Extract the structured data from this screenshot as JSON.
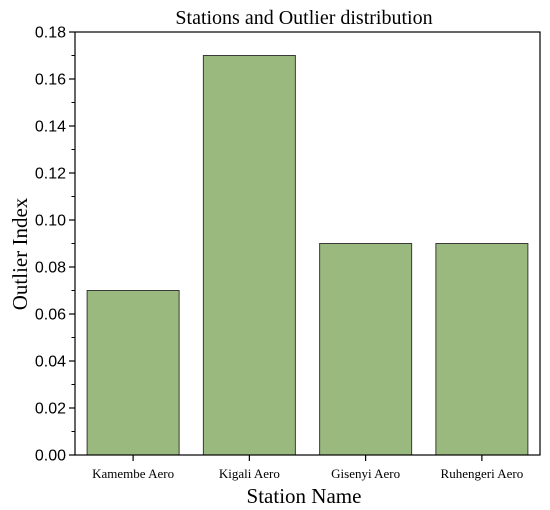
{
  "chart_data": {
    "type": "bar",
    "title": "Stations and Outlier distribution",
    "xlabel": "Station Name",
    "ylabel": "Outlier Index",
    "categories": [
      "Kamembe Aero",
      "Kigali Aero",
      "Gisenyi Aero",
      "Ruhengeri Aero"
    ],
    "values": [
      0.07,
      0.17,
      0.09,
      0.09
    ],
    "ylim": [
      0,
      0.18
    ],
    "yticks": [
      "0.00",
      "0.02",
      "0.04",
      "0.06",
      "0.08",
      "0.10",
      "0.12",
      "0.14",
      "0.16",
      "0.18"
    ],
    "grid": false,
    "bar_color": "#9ab97f",
    "bar_edge_color": "#3a3a3a"
  }
}
